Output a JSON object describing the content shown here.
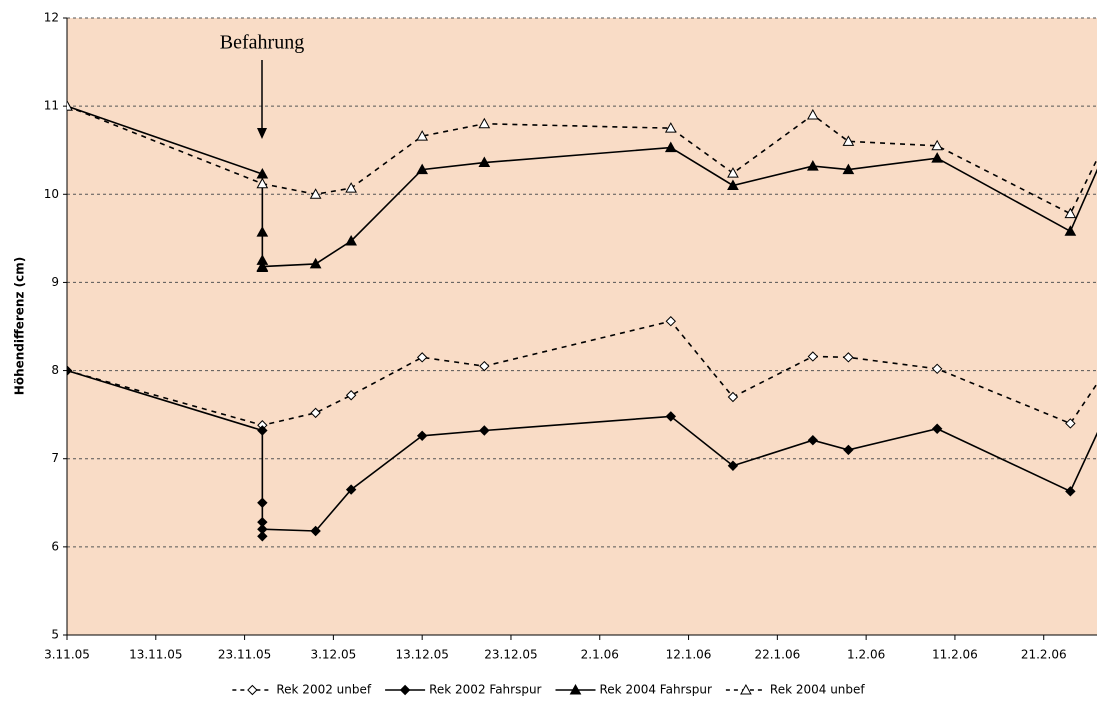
{
  "chart_data": {
    "type": "line",
    "y_label": "Höhendifferenz (cm)",
    "annotation": "Befahrung",
    "xlim": [
      "2005-11-03",
      "2006-02-27"
    ],
    "xticks": [
      {
        "value": "2005-11-03",
        "label": "3.11.05"
      },
      {
        "value": "2005-11-13",
        "label": "13.11.05"
      },
      {
        "value": "2005-11-23",
        "label": "23.11.05"
      },
      {
        "value": "2005-12-03",
        "label": "3.12.05"
      },
      {
        "value": "2005-12-13",
        "label": "13.12.05"
      },
      {
        "value": "2005-12-23",
        "label": "23.12.05"
      },
      {
        "value": "2006-01-02",
        "label": "2.1.06"
      },
      {
        "value": "2006-01-12",
        "label": "12.1.06"
      },
      {
        "value": "2006-01-22",
        "label": "22.1.06"
      },
      {
        "value": "2006-02-01",
        "label": "1.2.06"
      },
      {
        "value": "2006-02-11",
        "label": "11.2.06"
      },
      {
        "value": "2006-02-21",
        "label": "21.2.06"
      }
    ],
    "ylim": [
      5,
      12
    ],
    "yticks": [
      5,
      6,
      7,
      8,
      9,
      10,
      11,
      12
    ],
    "grid": true,
    "background": "#f9dcc6",
    "series": [
      {
        "name": "Rek 2002 unbef",
        "color": "#000000",
        "marker": "diamond-open",
        "dash": true,
        "x": [
          "2005-11-03",
          "2005-11-25",
          "2005-12-01",
          "2005-12-05",
          "2005-12-13",
          "2005-12-20",
          "2006-01-10",
          "2006-01-17",
          "2006-01-26",
          "2006-01-30",
          "2006-02-09",
          "2006-02-24",
          "2006-02-28"
        ],
        "values": [
          8.0,
          7.38,
          7.52,
          7.72,
          8.15,
          8.05,
          8.56,
          7.7,
          8.16,
          8.15,
          8.02,
          7.4,
          8.0
        ]
      },
      {
        "name": "Rek 2002 Fahrspur",
        "color": "#000000",
        "marker": "diamond",
        "dash": false,
        "x": [
          "2005-11-03",
          "2005-11-25",
          "2005-11-25",
          "2005-11-25",
          "2005-11-25",
          "2005-11-25",
          "2005-12-01",
          "2005-12-05",
          "2005-12-13",
          "2005-12-20",
          "2006-01-10",
          "2006-01-17",
          "2006-01-26",
          "2006-01-30",
          "2006-02-09",
          "2006-02-24",
          "2006-02-28"
        ],
        "values": [
          8.0,
          7.32,
          6.5,
          6.28,
          6.12,
          6.2,
          6.18,
          6.65,
          7.26,
          7.32,
          7.48,
          6.92,
          7.21,
          7.1,
          7.34,
          6.63,
          7.5
        ]
      },
      {
        "name": "Rek 2004 Fahrspur",
        "color": "#000000",
        "marker": "triangle",
        "dash": false,
        "x": [
          "2005-11-03",
          "2005-11-25",
          "2005-11-25",
          "2005-11-25",
          "2005-11-25",
          "2005-11-25",
          "2005-12-01",
          "2005-12-05",
          "2005-12-13",
          "2005-12-20",
          "2006-01-10",
          "2006-01-17",
          "2006-01-26",
          "2006-01-30",
          "2006-02-09",
          "2006-02-24",
          "2006-02-28"
        ],
        "values": [
          11.0,
          10.23,
          9.57,
          9.25,
          9.17,
          9.18,
          9.21,
          9.47,
          10.28,
          10.36,
          10.53,
          10.1,
          10.32,
          10.28,
          10.41,
          9.58,
          10.5
        ]
      },
      {
        "name": "Rek 2004 unbef",
        "color": "#000000",
        "marker": "triangle-open",
        "dash": true,
        "x": [
          "2005-11-03",
          "2005-11-25",
          "2005-12-01",
          "2005-12-05",
          "2005-12-13",
          "2005-12-20",
          "2006-01-10",
          "2006-01-17",
          "2006-01-26",
          "2006-01-30",
          "2006-02-09",
          "2006-02-24",
          "2006-02-28"
        ],
        "values": [
          11.0,
          10.12,
          10.0,
          10.07,
          10.66,
          10.8,
          10.75,
          10.24,
          10.9,
          10.6,
          10.55,
          9.78,
          10.6
        ]
      }
    ]
  }
}
